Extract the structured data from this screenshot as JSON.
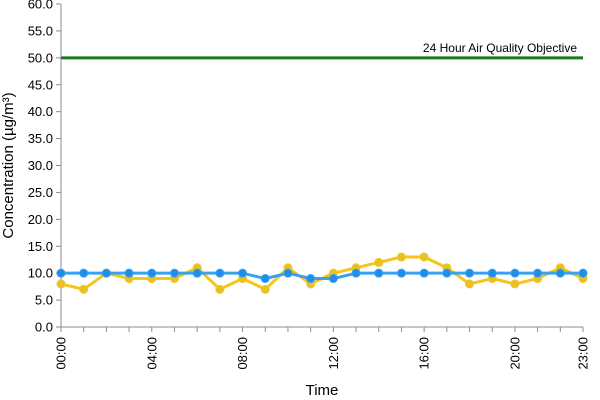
{
  "chart_data": {
    "type": "line",
    "title": "",
    "xlabel": "Time",
    "ylabel": "Concentration (µg/m³)",
    "ylim": [
      0,
      60
    ],
    "yticks": [
      "0.0",
      "5.0",
      "10.0",
      "15.0",
      "20.0",
      "25.0",
      "30.0",
      "35.0",
      "40.0",
      "45.0",
      "50.0",
      "55.0",
      "60.0"
    ],
    "xticks": [
      "00:00",
      "04:00",
      "08:00",
      "12:00",
      "16:00",
      "20:00",
      "23:00"
    ],
    "x": [
      "00:00",
      "01:00",
      "02:00",
      "03:00",
      "04:00",
      "05:00",
      "06:00",
      "07:00",
      "08:00",
      "09:00",
      "10:00",
      "11:00",
      "12:00",
      "13:00",
      "14:00",
      "15:00",
      "16:00",
      "17:00",
      "18:00",
      "19:00",
      "20:00",
      "21:00",
      "22:00",
      "23:00"
    ],
    "series": [
      {
        "values": [
          8,
          7,
          10,
          9,
          9,
          9,
          11,
          7,
          9,
          7,
          11,
          8,
          10,
          11,
          12,
          13,
          13,
          11,
          8,
          9,
          8,
          9,
          11,
          9
        ],
        "color": "#f2c42a",
        "marker_color": "#e8c02a",
        "line_color": "#f5c518"
      },
      {
        "values": [
          10,
          10,
          10,
          10,
          10,
          10,
          10,
          10,
          10,
          9,
          10,
          9,
          9,
          10,
          10,
          10,
          10,
          10,
          10,
          10,
          10,
          10,
          10,
          10
        ],
        "color": "#1e90ff",
        "marker_color": "#1f8ee8",
        "line_color": "#3aa0f0"
      }
    ],
    "reference_line": {
      "label": "24 Hour Air Quality Objective",
      "value": 50,
      "color": "#1f7a1f"
    },
    "grid": false,
    "legend": "none"
  }
}
